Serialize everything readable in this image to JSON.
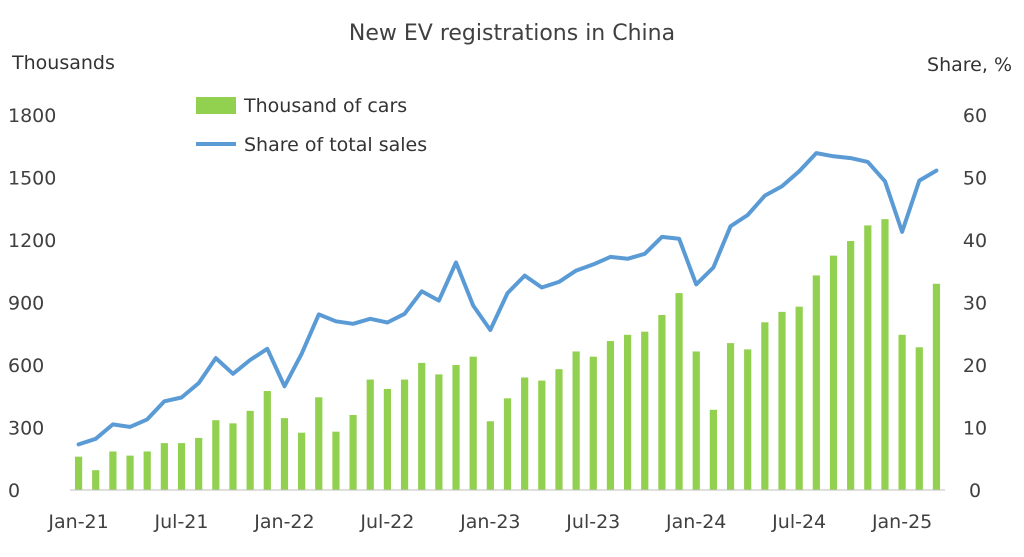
{
  "chart_data": {
    "type": "bar+line",
    "title": "New EV registrations in China",
    "y_left_label": "Thousands",
    "y_right_label": "Share, %",
    "y_left_range": [
      0,
      1800
    ],
    "y_left_ticks": [
      "0",
      "300",
      "600",
      "900",
      "1200",
      "1500",
      "1800"
    ],
    "y_right_range": [
      0,
      60
    ],
    "y_right_ticks": [
      "0",
      "10",
      "20",
      "30",
      "40",
      "50",
      "60"
    ],
    "x_tick_labels": [
      "Jan-21",
      "Jul-21",
      "Jan-22",
      "Jul-22",
      "Jan-23",
      "Jul-23",
      "Jan-24",
      "Jul-24",
      "Jan-25"
    ],
    "x_tick_index": [
      0,
      6,
      12,
      18,
      24,
      30,
      36,
      42,
      48
    ],
    "legend_position": "top-left",
    "grid": false,
    "months": [
      "Jan-21",
      "Feb-21",
      "Mar-21",
      "Apr-21",
      "May-21",
      "Jun-21",
      "Jul-21",
      "Aug-21",
      "Sep-21",
      "Oct-21",
      "Nov-21",
      "Dec-21",
      "Jan-22",
      "Feb-22",
      "Mar-22",
      "Apr-22",
      "May-22",
      "Jun-22",
      "Jul-22",
      "Aug-22",
      "Sep-22",
      "Oct-22",
      "Nov-22",
      "Dec-22",
      "Jan-23",
      "Feb-23",
      "Mar-23",
      "Apr-23",
      "May-23",
      "Jun-23",
      "Jul-23",
      "Aug-23",
      "Sep-23",
      "Oct-23",
      "Nov-23",
      "Dec-23",
      "Jan-24",
      "Feb-24",
      "Mar-24",
      "Apr-24",
      "May-24",
      "Jun-24",
      "Jul-24",
      "Aug-24",
      "Sep-24",
      "Oct-24",
      "Nov-24",
      "Dec-24",
      "Jan-25",
      "Feb-25",
      "Mar-25"
    ],
    "series": [
      {
        "name": "Thousand of cars",
        "type": "bar",
        "axis": "left",
        "color": "#92d050",
        "values": [
          160,
          95,
          185,
          165,
          185,
          225,
          225,
          250,
          335,
          320,
          380,
          475,
          345,
          275,
          445,
          280,
          360,
          530,
          485,
          530,
          610,
          555,
          600,
          640,
          330,
          440,
          540,
          525,
          580,
          665,
          640,
          715,
          745,
          760,
          840,
          945,
          665,
          385,
          705,
          675,
          805,
          855,
          880,
          1030,
          1125,
          1195,
          1270,
          1300,
          745,
          685,
          990
        ]
      },
      {
        "name": "Share of total sales",
        "type": "line",
        "axis": "right",
        "color": "#5b9bd5",
        "values": [
          7.3,
          8.2,
          10.5,
          10.1,
          11.3,
          14.2,
          14.8,
          17.1,
          21.1,
          18.6,
          20.8,
          22.6,
          16.6,
          21.8,
          28.1,
          27.0,
          26.6,
          27.4,
          26.8,
          28.2,
          31.8,
          30.3,
          36.4,
          29.5,
          25.6,
          31.5,
          34.3,
          32.4,
          33.3,
          35.1,
          36.1,
          37.3,
          37.0,
          37.8,
          40.5,
          40.2,
          32.9,
          35.6,
          42.2,
          44.0,
          47.1,
          48.6,
          51.0,
          53.9,
          53.4,
          53.1,
          52.5,
          49.4,
          41.3,
          49.5,
          51.1
        ]
      }
    ]
  }
}
